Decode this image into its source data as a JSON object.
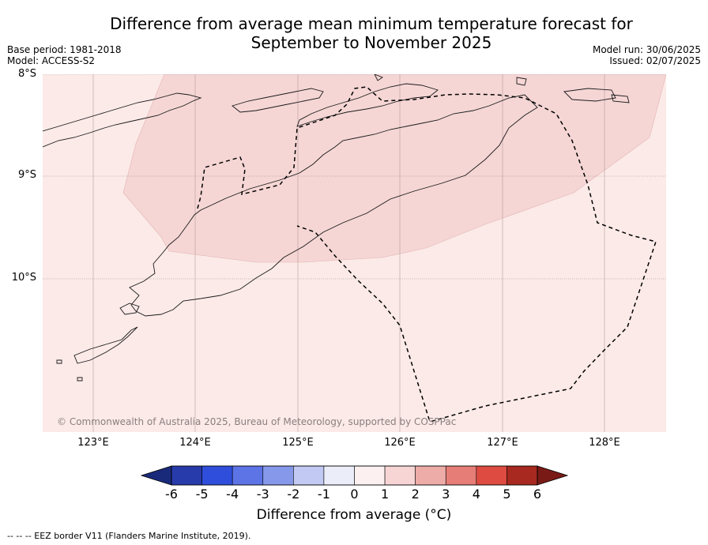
{
  "title": {
    "line1": "Difference from average mean minimum temperature forecast for",
    "line2": "September to November 2025"
  },
  "meta": {
    "base_period": "Base period: 1981-2018",
    "model": "Model: ACCESS-S2",
    "model_run": "Model run: 30/06/2025",
    "issued": "Issued: 02/07/2025"
  },
  "map": {
    "latitude_labels": [
      "8°S",
      "9°S",
      "10°S"
    ],
    "longitude_labels": [
      "123°E",
      "124°E",
      "125°E",
      "126°E",
      "127°E",
      "128°E"
    ],
    "extent": {
      "lon": [
        122.56,
        128.6
      ],
      "lat": [
        -11.5,
        -8.0
      ]
    },
    "gridlines": true,
    "background_color": "#fbeae8",
    "anomaly_region_color": "#f5d6d5",
    "anomaly_region_category": "1 to 2",
    "copyright": "© Commonwealth of Australia 2025, Bureau of Meteorology, supported by COSPPac"
  },
  "colorbar": {
    "ticks": [
      "-6",
      "-5",
      "-4",
      "-3",
      "-2",
      "-1",
      "0",
      "1",
      "2",
      "3",
      "4",
      "5",
      "6"
    ],
    "colors": [
      "#273baa",
      "#2f4edc",
      "#5c74e6",
      "#8598ea",
      "#c2c9f3",
      "#ebeef9",
      "#fcf0f0",
      "#f7d5d5",
      "#eeaca8",
      "#e67d77",
      "#dd4b41",
      "#a8291f"
    ],
    "under_color": "#1a2a7a",
    "over_color": "#7a1a16",
    "label": "Difference from average ($^\\circ$C)",
    "label_display": "Difference from average (°C)"
  },
  "footnote": "--  --  -- EEZ border V11 (Flanders Marine Institute, 2019)."
}
